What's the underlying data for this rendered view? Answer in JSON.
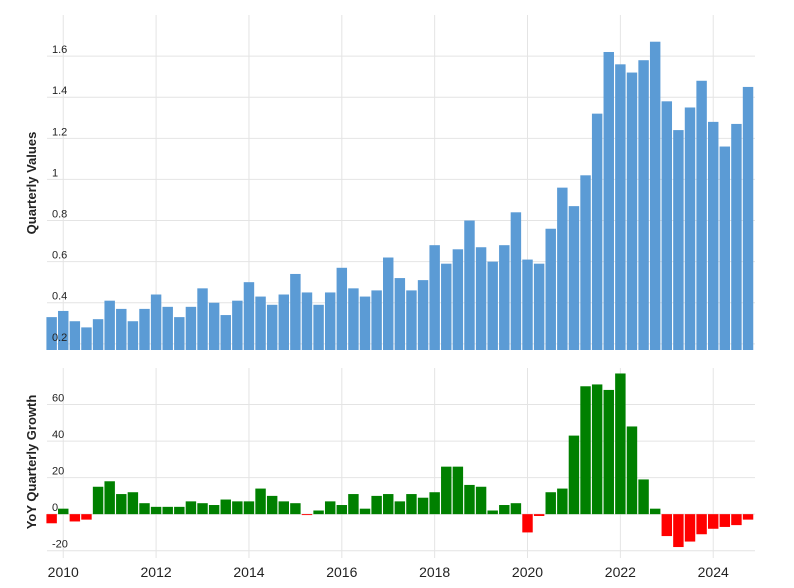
{
  "chart_data": [
    {
      "type": "bar",
      "ylabel": "Quarterly Values",
      "color": "#5b9bd5",
      "grid": true,
      "x": [
        2009.75,
        2010,
        2010.25,
        2010.5,
        2010.75,
        2011,
        2011.25,
        2011.5,
        2011.75,
        2012,
        2012.25,
        2012.5,
        2012.75,
        2013,
        2013.25,
        2013.5,
        2013.75,
        2014,
        2014.25,
        2014.5,
        2014.75,
        2015,
        2015.25,
        2015.5,
        2015.75,
        2016,
        2016.25,
        2016.5,
        2016.75,
        2017,
        2017.25,
        2017.5,
        2017.75,
        2018,
        2018.25,
        2018.5,
        2018.75,
        2019,
        2019.25,
        2019.5,
        2019.75,
        2020,
        2020.25,
        2020.5,
        2020.75,
        2021,
        2021.25,
        2021.5,
        2021.75,
        2022,
        2022.25,
        2022.5,
        2022.75,
        2023,
        2023.25,
        2023.5,
        2023.75,
        2024,
        2024.25,
        2024.5,
        2024.75
      ],
      "values": [
        0.33,
        0.36,
        0.31,
        0.28,
        0.32,
        0.41,
        0.37,
        0.31,
        0.37,
        0.44,
        0.38,
        0.33,
        0.38,
        0.47,
        0.4,
        0.34,
        0.41,
        0.5,
        0.43,
        0.39,
        0.44,
        0.54,
        0.45,
        0.39,
        0.45,
        0.57,
        0.47,
        0.43,
        0.46,
        0.62,
        0.52,
        0.46,
        0.51,
        0.68,
        0.59,
        0.66,
        0.8,
        0.67,
        0.6,
        0.68,
        0.84,
        0.61,
        0.59,
        0.76,
        0.96,
        0.87,
        1.02,
        1.32,
        1.62,
        1.56,
        1.52,
        1.58,
        1.67,
        1.38,
        1.24,
        1.35,
        1.48,
        1.28,
        1.16,
        1.27,
        1.45
      ],
      "xlim": [
        2009.65,
        2024.9
      ],
      "xticks": [
        2010,
        2012,
        2014,
        2016,
        2018,
        2020,
        2022,
        2024
      ],
      "ylim": [
        0.17,
        1.8
      ],
      "yticks": [
        0.2,
        0.4,
        0.6,
        0.8,
        1.0,
        1.2,
        1.4,
        1.6
      ]
    },
    {
      "type": "signed-bar",
      "ylabel": "YoY Quarterly Growth",
      "positive_color": "#008000",
      "negative_color": "#ff0000",
      "grid": true,
      "x": [
        2009.75,
        2010,
        2010.25,
        2010.5,
        2010.75,
        2011,
        2011.25,
        2011.5,
        2011.75,
        2012,
        2012.25,
        2012.5,
        2012.75,
        2013,
        2013.25,
        2013.5,
        2013.75,
        2014,
        2014.25,
        2014.5,
        2014.75,
        2015,
        2015.25,
        2015.5,
        2015.75,
        2016,
        2016.25,
        2016.5,
        2016.75,
        2017,
        2017.25,
        2017.5,
        2017.75,
        2018,
        2018.25,
        2018.5,
        2018.75,
        2019,
        2019.25,
        2019.5,
        2019.75,
        2020,
        2020.25,
        2020.5,
        2020.75,
        2021,
        2021.25,
        2021.5,
        2021.75,
        2022,
        2022.25,
        2022.5,
        2022.75,
        2023,
        2023.25,
        2023.5,
        2023.75,
        2024,
        2024.25,
        2024.5,
        2024.75
      ],
      "values": [
        -5,
        3,
        -4,
        -3,
        15,
        18,
        11,
        12,
        6,
        4,
        4,
        4,
        7,
        6,
        5,
        8,
        7,
        7,
        14,
        10,
        7,
        6,
        -0.5,
        2,
        7,
        5,
        11,
        3,
        10,
        11,
        7,
        11,
        9,
        12,
        26,
        26,
        16,
        15,
        2,
        5,
        6,
        -10,
        -1,
        12,
        14,
        43,
        70,
        71,
        68,
        77,
        48,
        19,
        3,
        -12,
        -18,
        -15,
        -11,
        -8,
        -7,
        -6,
        -3
      ],
      "xlim": [
        2009.65,
        2024.9
      ],
      "xticks": [
        2010,
        2012,
        2014,
        2016,
        2018,
        2020,
        2022,
        2024
      ],
      "ylim": [
        -24,
        80
      ],
      "yticks": [
        -20,
        0,
        20,
        40,
        60
      ]
    }
  ]
}
